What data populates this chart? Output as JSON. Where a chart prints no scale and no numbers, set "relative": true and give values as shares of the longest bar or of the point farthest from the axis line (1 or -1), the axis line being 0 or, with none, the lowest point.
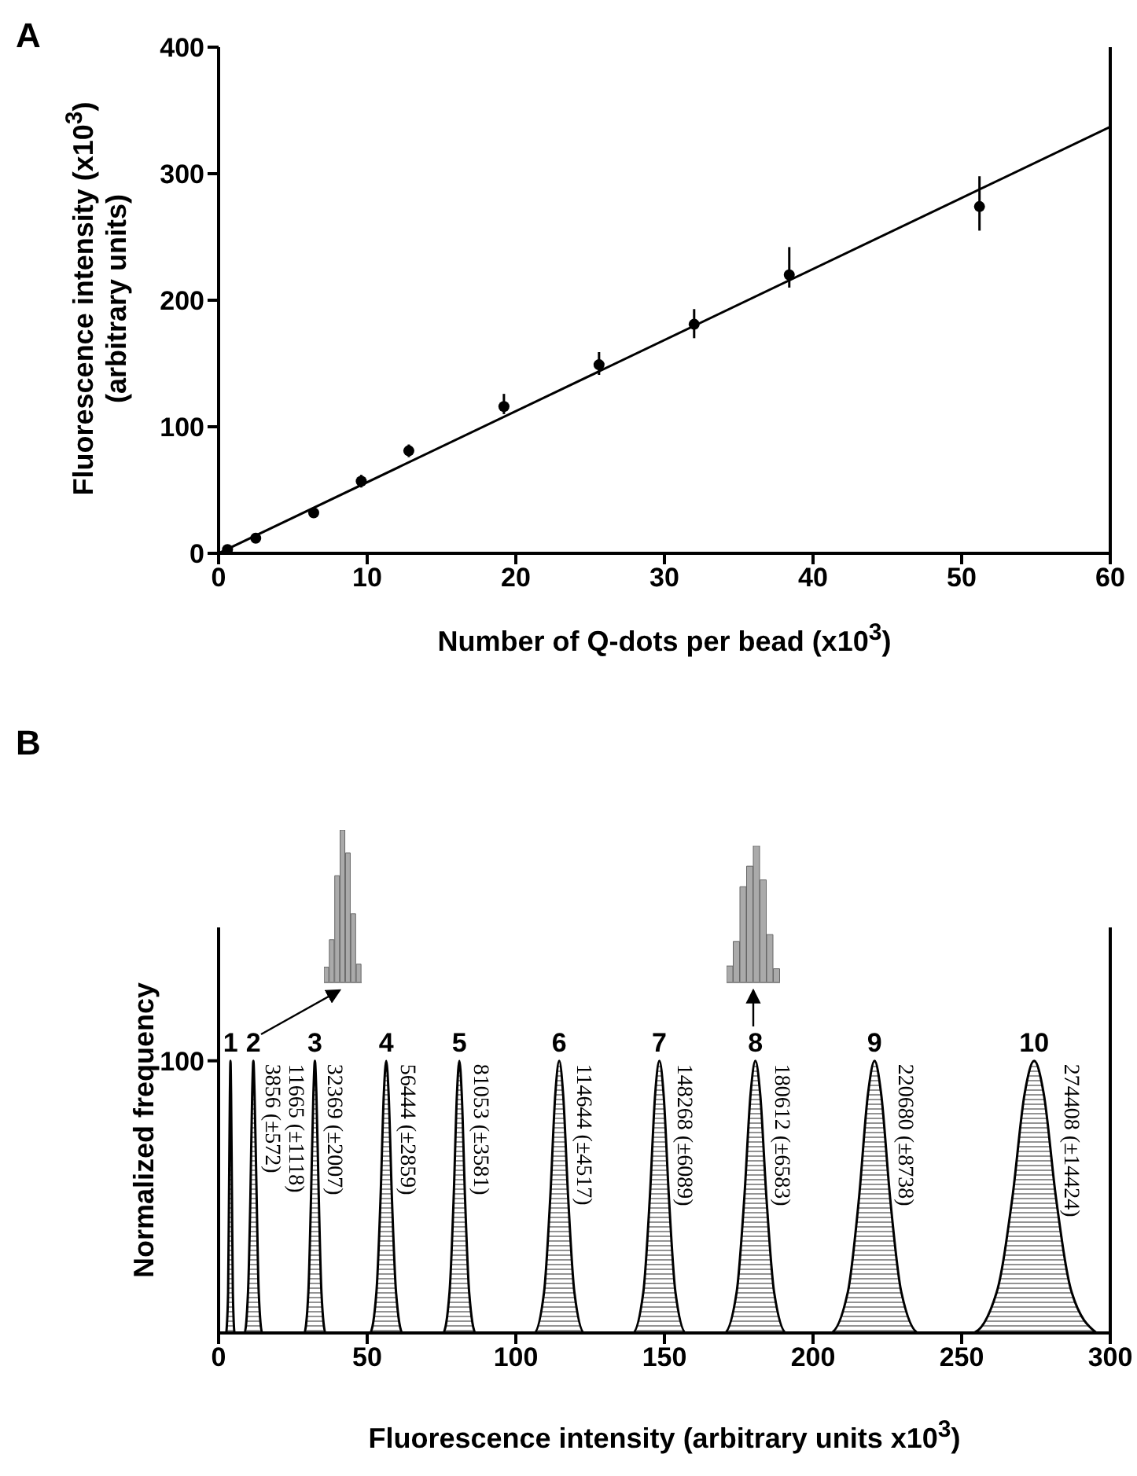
{
  "chart_data": [
    {
      "type": "scatter",
      "title": "A",
      "xlabel": "Number of Q-dots per bead (x10$^{3}$)",
      "ylabel": "Fluorescence intensity (x10$^{3}$)\n(arbitrary units)",
      "x": [
        0.6,
        2.5,
        6.4,
        9.6,
        12.8,
        19.2,
        25.6,
        32,
        38.4,
        51.2
      ],
      "xlim": [
        0,
        60
      ],
      "xticks": [
        0,
        10,
        20,
        30,
        40,
        50,
        60
      ],
      "ylim": [
        0,
        400
      ],
      "yticks": [
        0,
        100,
        200,
        300,
        400
      ],
      "grid": false,
      "series": [
        {
          "color": "#000000",
          "marker": "circle",
          "values": [
            3,
            12,
            32,
            57,
            81,
            116,
            149,
            181,
            220,
            274
          ],
          "errors": [
            null,
            null,
            4,
            5,
            5,
            [
              110,
              126
            ],
            [
              141,
              159
            ],
            [
              170,
              193
            ],
            [
              210,
              242
            ],
            [
              255,
              298
            ]
          ]
        },
        {
          "type": "line",
          "color": "#000000",
          "x": [
            0,
            60
          ],
          "values": [
            0,
            337
          ]
        }
      ]
    },
    {
      "type": "area",
      "title": "B",
      "xlabel": "Fluorescence intensity (arbitrary units x10$^{3}$)",
      "ylabel": "Normalized frequency",
      "xlim": [
        0,
        300
      ],
      "xticks": [
        0,
        50,
        100,
        150,
        200,
        250,
        300
      ],
      "ylim": [
        0,
        149
      ],
      "yticks": [
        100
      ],
      "grid": false,
      "x": [
        2.6,
        3.2,
        3.5,
        3.8,
        4,
        4.2,
        4.5,
        4.8,
        5.4,
        8.7,
        9.9,
        10.7,
        11.3,
        11.7,
        12.1,
        12.8,
        13.5,
        14.7,
        28.8,
        30.2,
        31.1,
        31.9,
        32.4,
        32.9,
        33.7,
        34.6,
        36,
        50.9,
        53.1,
        54.5,
        55.6,
        56.4,
        57.2,
        58.3,
        59.7,
        61.9,
        75.5,
        77.7,
        79.1,
        80.2,
        81,
        81.8,
        82.9,
        84.3,
        86.5,
        106.1,
        109.5,
        111.6,
        113.3,
        114.6,
        115.9,
        117.6,
        119.7,
        123.1,
        139.3,
        142.9,
        145.1,
        146.9,
        148.3,
        149.7,
        151.5,
        153.7,
        157.3,
        170.1,
        174.3,
        176.9,
        179,
        180.6,
        182.2,
        184.3,
        186.9,
        191.1,
        205.7,
        211.7,
        215.5,
        218.5,
        220.7,
        222.9,
        225.9,
        229.7,
        235.7,
        253.4,
        261.8,
        267.1,
        271.2,
        274.4,
        277.6,
        281.7,
        287,
        295.4
      ],
      "series": [
        {
          "color": "#000000",
          "values": [
            0,
            15,
            50,
            88,
            100,
            88,
            50,
            15,
            0,
            0,
            15,
            50,
            88,
            100,
            88,
            50,
            15,
            0,
            0,
            15,
            50,
            88,
            100,
            88,
            50,
            15,
            0,
            0,
            15,
            50,
            88,
            100,
            88,
            50,
            15,
            0,
            0,
            15,
            50,
            88,
            100,
            88,
            50,
            15,
            0,
            0,
            15,
            50,
            88,
            100,
            88,
            50,
            15,
            0,
            0,
            15,
            50,
            88,
            100,
            88,
            50,
            15,
            0,
            0,
            15,
            50,
            88,
            100,
            88,
            50,
            15,
            0,
            0,
            15,
            50,
            88,
            100,
            88,
            50,
            15,
            0,
            0,
            15,
            50,
            88,
            100,
            88,
            50,
            15,
            0
          ]
        }
      ],
      "annotations": [
        {
          "text": "1",
          "x": 4,
          "y": 100
        },
        {
          "text": "3856 (±572)",
          "x": 4,
          "y": 100
        },
        {
          "text": "2",
          "x": 11.7,
          "y": 100
        },
        {
          "text": "11665 (±1118)",
          "x": 11.7,
          "y": 100
        },
        {
          "text": "3",
          "x": 32.4,
          "y": 100
        },
        {
          "text": "32369 (±2007)",
          "x": 32.4,
          "y": 100
        },
        {
          "text": "4",
          "x": 56.4,
          "y": 100
        },
        {
          "text": "56444 (±2859)",
          "x": 56.4,
          "y": 100
        },
        {
          "text": "5",
          "x": 81,
          "y": 100
        },
        {
          "text": "81053 (±3581)",
          "x": 81,
          "y": 100
        },
        {
          "text": "6",
          "x": 114.6,
          "y": 100
        },
        {
          "text": "114644 (±4517)",
          "x": 114.6,
          "y": 100
        },
        {
          "text": "7",
          "x": 148.3,
          "y": 100
        },
        {
          "text": "148268 (±6089)",
          "x": 148.3,
          "y": 100
        },
        {
          "text": "8",
          "x": 180.6,
          "y": 100
        },
        {
          "text": "180612 (±6583)",
          "x": 180.6,
          "y": 100
        },
        {
          "text": "9",
          "x": 220.7,
          "y": 100
        },
        {
          "text": "220680 (±8738)",
          "x": 220.7,
          "y": 100
        },
        {
          "text": "10",
          "x": 274.4,
          "y": 100
        },
        {
          "text": "274408 (±14424)",
          "x": 274.4,
          "y": 100
        }
      ]
    },
    {
      "type": "bar",
      "relative": true,
      "categories": [
        null,
        null,
        null,
        null,
        null,
        null,
        null
      ],
      "values": [
        0.1,
        0.28,
        0.7,
        1,
        0.85,
        0.45,
        0.12
      ],
      "color": "#aaaaaa"
    },
    {
      "type": "bar",
      "relative": true,
      "categories": [
        null,
        null,
        null,
        null,
        null,
        null,
        null,
        null
      ],
      "values": [
        0.12,
        0.3,
        0.7,
        0.85,
        1,
        0.75,
        0.35,
        0.1
      ],
      "color": "#aaaaaa"
    }
  ]
}
